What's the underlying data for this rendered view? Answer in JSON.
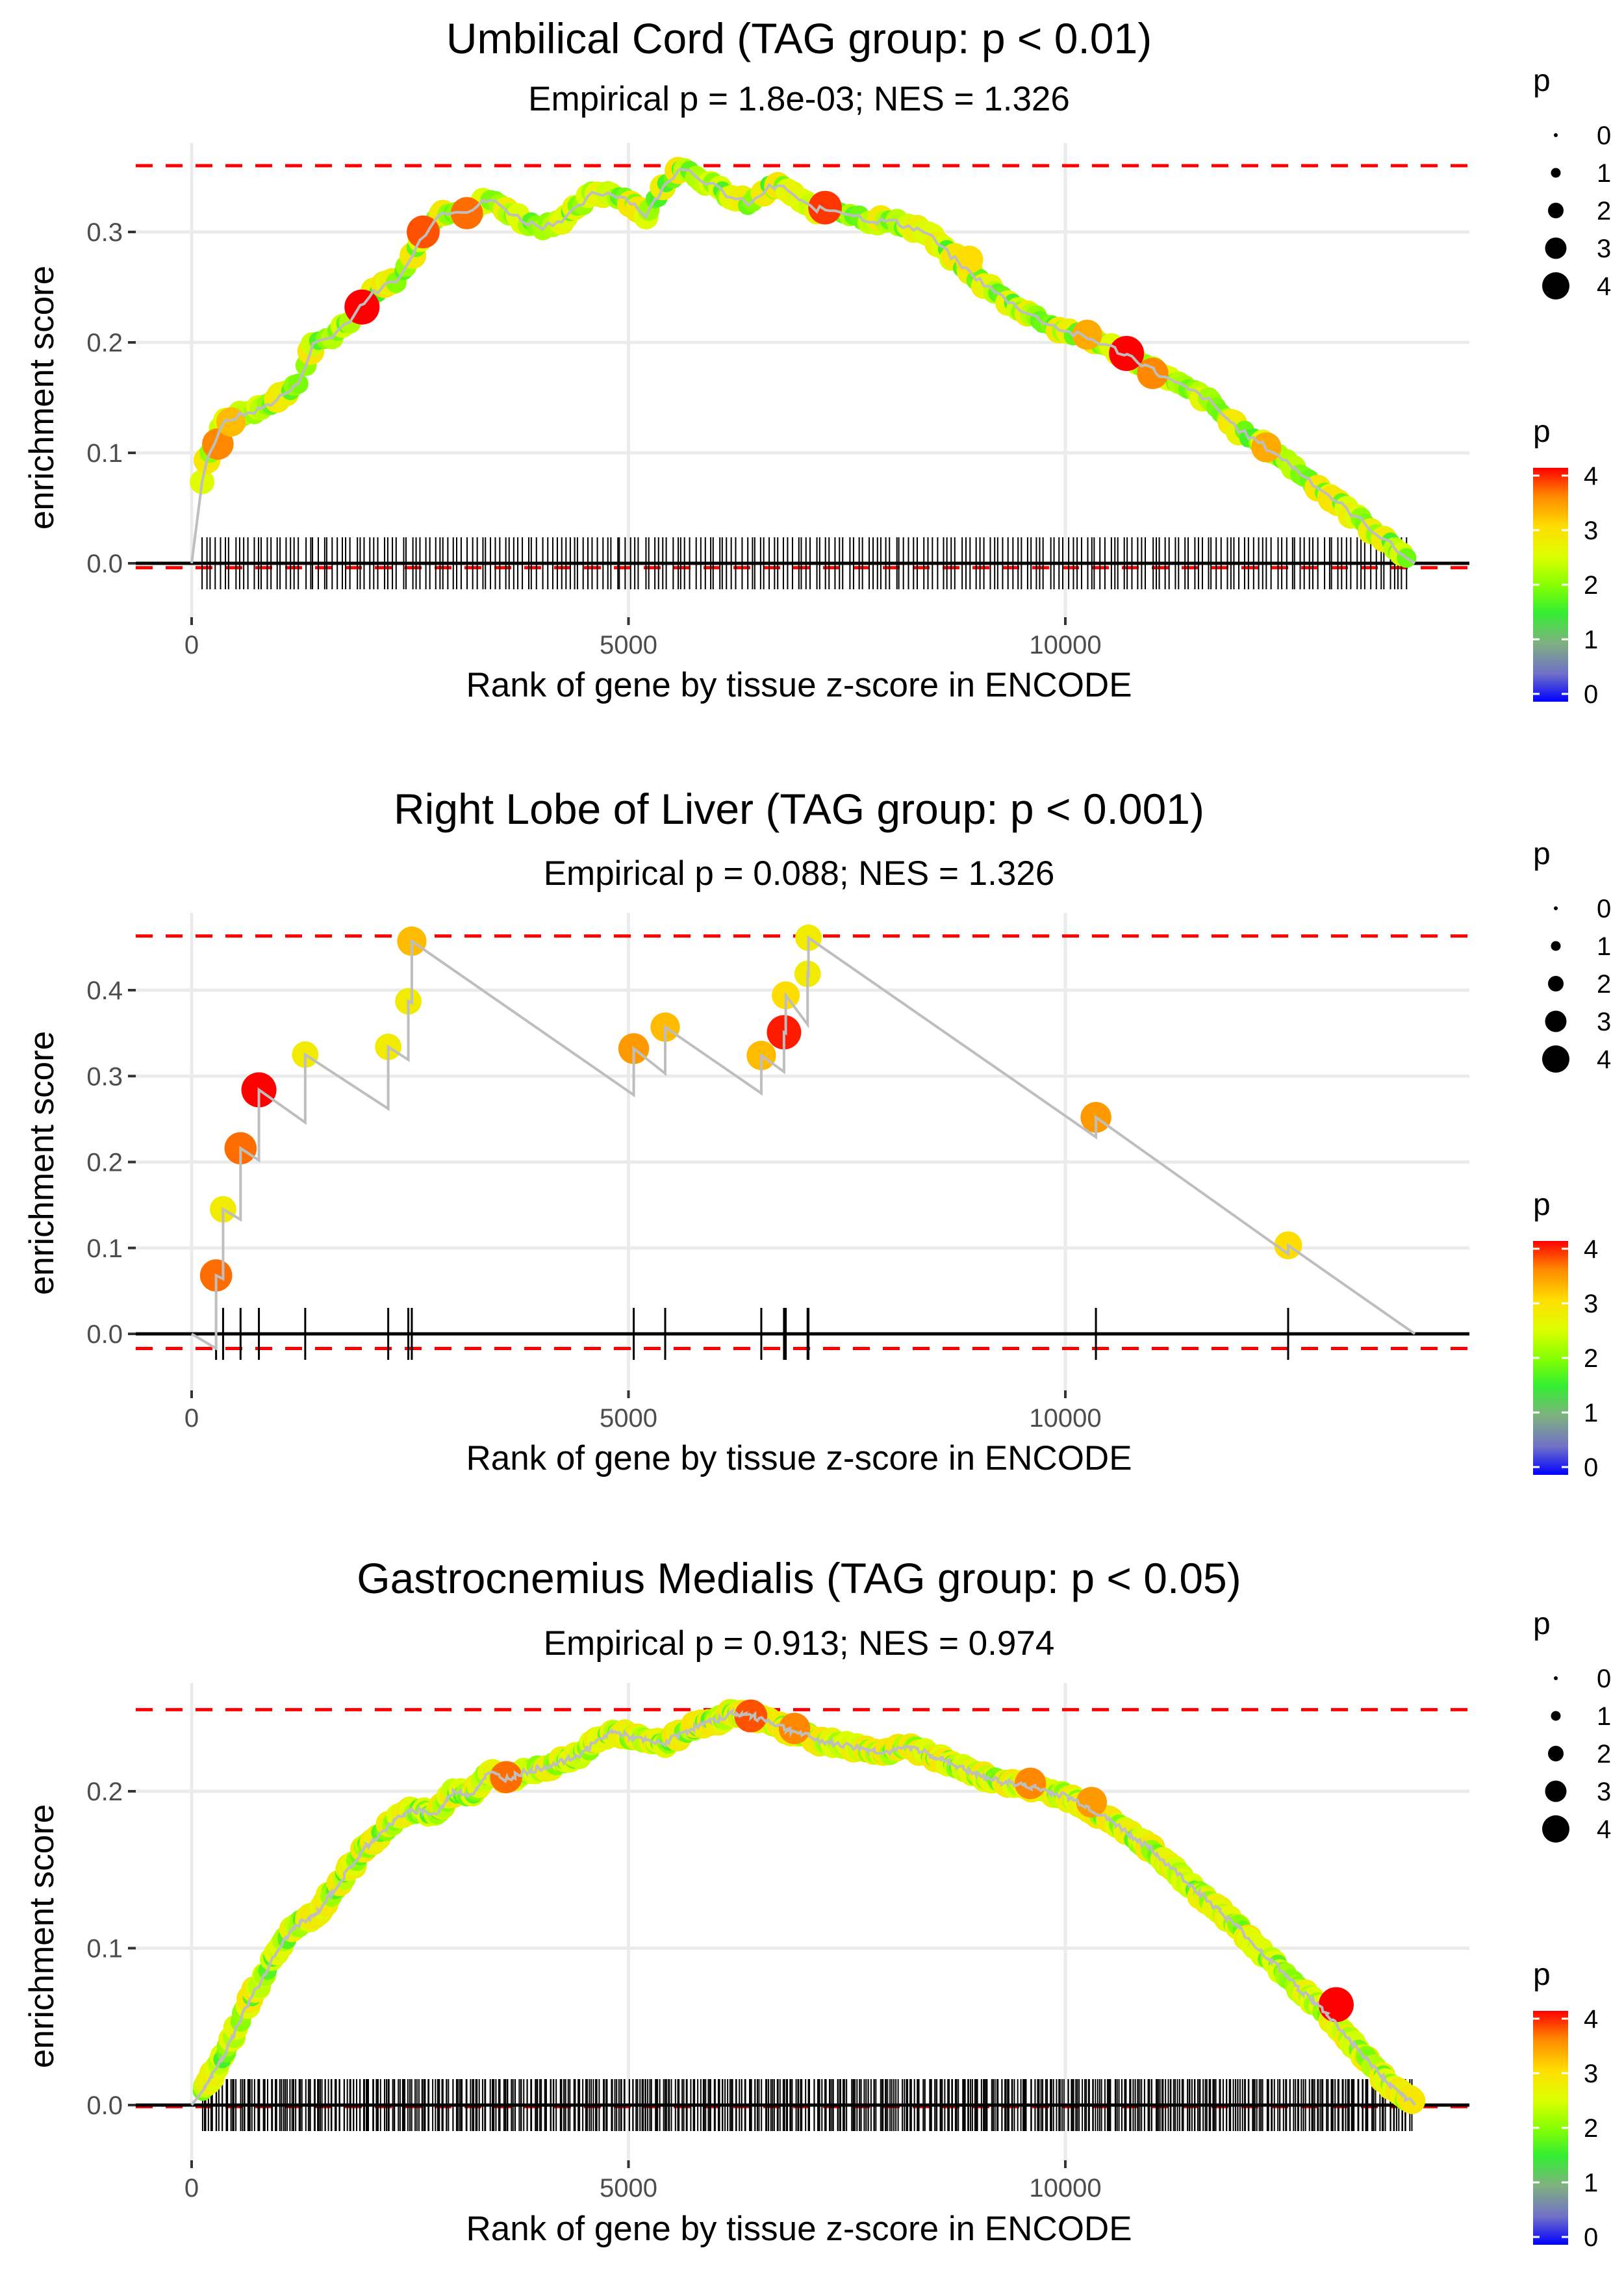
{
  "chart_data": [
    {
      "type": "scatter",
      "subtype": "gsea-running-enrichment",
      "title": "Umbilical Cord (TAG group: p < 0.01)",
      "subtitle": "Empirical p = 1.8e-03; NES = 1.326",
      "xlabel": "Rank of gene by tissue z-score in ENCODE",
      "ylabel": "enrichment score",
      "x_ticks": [
        0,
        5000,
        10000
      ],
      "x_tick_labels": [
        "0",
        "5000",
        "10000"
      ],
      "y_ticks": [
        0.0,
        0.1,
        0.2,
        0.3
      ],
      "y_tick_labels": [
        "0.0",
        "0.1",
        "0.2",
        "0.3"
      ],
      "xlim": [
        -750,
        14700
      ],
      "ylim": [
        -0.03,
        0.375
      ],
      "grid": true,
      "max_es_line": 0.36,
      "min_es_line": -0.004,
      "n_genes": 14000,
      "curve": {
        "x": [
          0,
          100,
          200,
          300,
          400,
          600,
          800,
          1000,
          1200,
          1400,
          1600,
          1800,
          2000,
          2200,
          2400,
          2600,
          2800,
          3000,
          3200,
          3400,
          3600,
          3800,
          4000,
          4200,
          4400,
          4600,
          4800,
          5000,
          5200,
          5400,
          5600,
          5800,
          6000,
          6200,
          6400,
          6600,
          6800,
          7000,
          7200,
          7400,
          7600,
          7800,
          8000,
          8200,
          8400,
          8800,
          9200,
          9600,
          10000,
          10400,
          10800,
          11200,
          11600,
          12000,
          12400,
          12800,
          13200,
          13600,
          13900,
          14000
        ],
        "y": [
          0.0,
          0.07,
          0.1,
          0.115,
          0.13,
          0.135,
          0.14,
          0.15,
          0.16,
          0.2,
          0.205,
          0.22,
          0.24,
          0.25,
          0.26,
          0.29,
          0.315,
          0.32,
          0.32,
          0.33,
          0.32,
          0.31,
          0.305,
          0.31,
          0.32,
          0.335,
          0.335,
          0.33,
          0.315,
          0.34,
          0.36,
          0.35,
          0.34,
          0.33,
          0.325,
          0.34,
          0.34,
          0.325,
          0.32,
          0.32,
          0.315,
          0.31,
          0.31,
          0.305,
          0.3,
          0.27,
          0.245,
          0.225,
          0.21,
          0.2,
          0.185,
          0.165,
          0.15,
          0.12,
          0.1,
          0.075,
          0.05,
          0.025,
          0.005,
          0.0
        ]
      },
      "highlight_points": [
        {
          "x": 300,
          "y": 0.108,
          "p": 3.5
        },
        {
          "x": 450,
          "y": 0.128,
          "p": 3.2
        },
        {
          "x": 1950,
          "y": 0.232,
          "p": 4.0
        },
        {
          "x": 2650,
          "y": 0.3,
          "p": 3.7
        },
        {
          "x": 3150,
          "y": 0.317,
          "p": 3.6
        },
        {
          "x": 7250,
          "y": 0.322,
          "p": 3.8
        },
        {
          "x": 8900,
          "y": 0.275,
          "p": 3.0
        },
        {
          "x": 10250,
          "y": 0.207,
          "p": 3.3
        },
        {
          "x": 10700,
          "y": 0.19,
          "p": 4.0
        },
        {
          "x": 11000,
          "y": 0.172,
          "p": 3.5
        },
        {
          "x": 12300,
          "y": 0.105,
          "p": 3.3
        }
      ],
      "hit_density": "moderate"
    },
    {
      "type": "scatter",
      "subtype": "gsea-running-enrichment",
      "title": "Right Lobe of Liver (TAG group: p < 0.001)",
      "subtitle": "Empirical p = 0.088; NES = 1.326",
      "xlabel": "Rank of gene by tissue z-score in ENCODE",
      "ylabel": "enrichment score",
      "x_ticks": [
        0,
        5000,
        10000
      ],
      "x_tick_labels": [
        "0",
        "5000",
        "10000"
      ],
      "y_ticks": [
        0.0,
        0.1,
        0.2,
        0.3,
        0.4
      ],
      "y_tick_labels": [
        "0.0",
        "0.1",
        "0.2",
        "0.3",
        "0.4"
      ],
      "xlim": [
        -750,
        14700
      ],
      "ylim": [
        -0.05,
        0.485
      ],
      "grid": true,
      "max_es_line": 0.463,
      "min_es_line": -0.017,
      "n_genes": 14000,
      "hits": [
        {
          "x": 280,
          "y_before": -0.017,
          "y": 0.068,
          "p": 3.6
        },
        {
          "x": 360,
          "y_before": 0.064,
          "y": 0.145,
          "p": 2.8
        },
        {
          "x": 560,
          "y_before": 0.133,
          "y": 0.216,
          "p": 3.6
        },
        {
          "x": 770,
          "y_before": 0.202,
          "y": 0.284,
          "p": 4.0
        },
        {
          "x": 1300,
          "y_before": 0.246,
          "y": 0.325,
          "p": 2.8
        },
        {
          "x": 2250,
          "y_before": 0.262,
          "y": 0.334,
          "p": 2.8
        },
        {
          "x": 2480,
          "y_before": 0.319,
          "y": 0.387,
          "p": 2.8
        },
        {
          "x": 2520,
          "y_before": 0.385,
          "y": 0.457,
          "p": 3.2
        },
        {
          "x": 5060,
          "y_before": 0.278,
          "y": 0.332,
          "p": 3.4
        },
        {
          "x": 5420,
          "y_before": 0.303,
          "y": 0.357,
          "p": 3.2
        },
        {
          "x": 6520,
          "y_before": 0.28,
          "y": 0.324,
          "p": 3.2
        },
        {
          "x": 6780,
          "y_before": 0.305,
          "y": 0.351,
          "p": 3.9
        },
        {
          "x": 6800,
          "y_before": 0.35,
          "y": 0.394,
          "p": 3.0
        },
        {
          "x": 7050,
          "y_before": 0.36,
          "y": 0.419,
          "p": 2.8
        },
        {
          "x": 7060,
          "y_before": 0.418,
          "y": 0.461,
          "p": 2.8
        },
        {
          "x": 10350,
          "y_before": 0.229,
          "y": 0.252,
          "p": 3.4
        },
        {
          "x": 12550,
          "y_before": 0.093,
          "y": 0.103,
          "p": 3.0
        }
      ],
      "end": {
        "x": 14000,
        "y": 0.0
      }
    },
    {
      "type": "scatter",
      "subtype": "gsea-running-enrichment",
      "title": "Gastrocnemius Medialis (TAG group: p < 0.05)",
      "subtitle": "Empirical p = 0.913; NES = 0.974",
      "xlabel": "Rank of gene by tissue z-score in ENCODE",
      "ylabel": "enrichment score",
      "x_ticks": [
        0,
        5000,
        10000
      ],
      "x_tick_labels": [
        "0",
        "5000",
        "10000"
      ],
      "y_ticks": [
        0.0,
        0.1,
        0.2
      ],
      "y_tick_labels": [
        "0.0",
        "0.1",
        "0.2"
      ],
      "xlim": [
        -750,
        14700
      ],
      "ylim": [
        -0.02,
        0.265
      ],
      "grid": true,
      "max_es_line": 0.252,
      "min_es_line": -0.001,
      "n_genes": 14000,
      "curve": {
        "x": [
          0,
          200,
          400,
          600,
          800,
          1000,
          1200,
          1400,
          1600,
          1800,
          2000,
          2200,
          2400,
          2600,
          2800,
          3000,
          3200,
          3400,
          3600,
          3800,
          4000,
          4200,
          4400,
          4600,
          4800,
          5000,
          5200,
          5400,
          5600,
          5800,
          6000,
          6200,
          6400,
          6600,
          6800,
          7000,
          7200,
          7400,
          7600,
          7800,
          8000,
          8200,
          8400,
          8600,
          8800,
          9000,
          9200,
          9400,
          9600,
          9800,
          10000,
          10200,
          10400,
          10600,
          10800,
          11000,
          11200,
          11400,
          11600,
          11800,
          12000,
          12200,
          12400,
          12600,
          12800,
          13000,
          13200,
          13400,
          13600,
          13800,
          14000
        ],
        "y": [
          0.0,
          0.015,
          0.035,
          0.06,
          0.08,
          0.1,
          0.115,
          0.12,
          0.135,
          0.15,
          0.165,
          0.175,
          0.185,
          0.188,
          0.185,
          0.2,
          0.198,
          0.212,
          0.208,
          0.212,
          0.215,
          0.218,
          0.222,
          0.23,
          0.238,
          0.235,
          0.232,
          0.23,
          0.237,
          0.242,
          0.245,
          0.25,
          0.248,
          0.245,
          0.24,
          0.236,
          0.232,
          0.23,
          0.228,
          0.226,
          0.225,
          0.228,
          0.225,
          0.22,
          0.215,
          0.21,
          0.207,
          0.205,
          0.203,
          0.2,
          0.197,
          0.192,
          0.185,
          0.178,
          0.17,
          0.162,
          0.152,
          0.142,
          0.132,
          0.122,
          0.112,
          0.1,
          0.09,
          0.078,
          0.068,
          0.058,
          0.045,
          0.032,
          0.02,
          0.008,
          0.0
        ]
      },
      "highlight_points": [
        {
          "x": 3600,
          "y": 0.209,
          "p": 3.6
        },
        {
          "x": 6400,
          "y": 0.248,
          "p": 3.7
        },
        {
          "x": 6900,
          "y": 0.24,
          "p": 3.5
        },
        {
          "x": 9600,
          "y": 0.205,
          "p": 3.5
        },
        {
          "x": 10300,
          "y": 0.193,
          "p": 3.4
        },
        {
          "x": 13100,
          "y": 0.064,
          "p": 4.0
        }
      ],
      "hit_density": "dense"
    }
  ],
  "legends": {
    "size_title": "p",
    "size_labels": [
      "0",
      "1",
      "2",
      "3",
      "4"
    ],
    "color_title": "p",
    "color_labels": [
      "4",
      "3",
      "2",
      "1",
      "0"
    ],
    "color_stops": [
      "#0000ff",
      "#808080",
      "#33ff33",
      "#ffff00",
      "#ff8000",
      "#ff0000"
    ]
  }
}
